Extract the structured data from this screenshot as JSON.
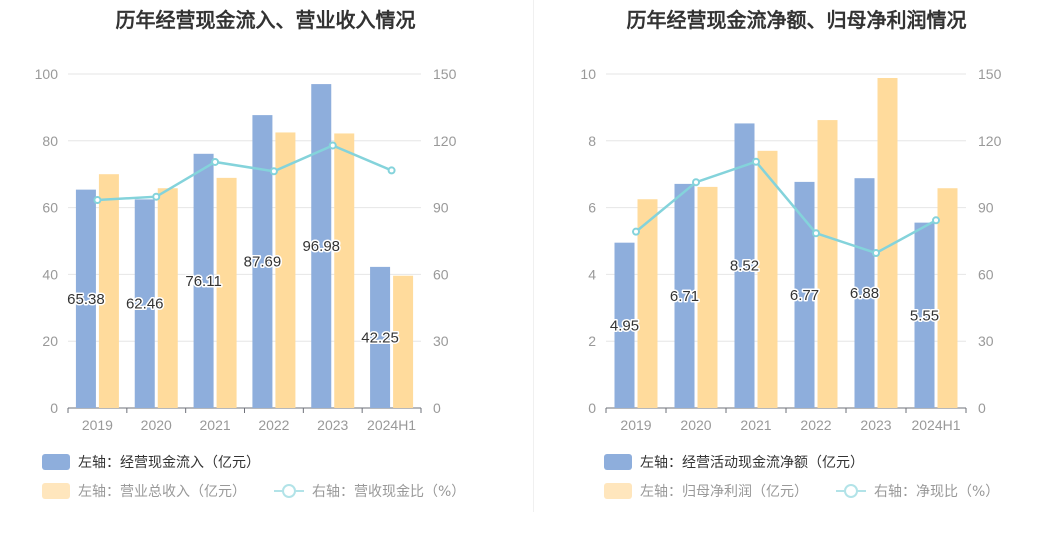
{
  "colors": {
    "bar_primary": "#8eaedc",
    "bar_secondary": "#ffdb9c",
    "line": "#84d3db",
    "legend_text_primary": "#333333",
    "legend_text_muted": "#999999"
  },
  "chart_data": [
    {
      "type": "bar",
      "title": "历年经营现金流入、营业收入情况",
      "categories": [
        "2019",
        "2020",
        "2021",
        "2022",
        "2023",
        "2024H1"
      ],
      "left_axis": {
        "ticks": [
          0,
          20,
          40,
          60,
          80,
          100
        ],
        "range": [
          0,
          100
        ]
      },
      "right_axis": {
        "ticks": [
          0,
          30,
          60,
          90,
          120,
          150
        ],
        "range": [
          0,
          150
        ]
      },
      "grid": true,
      "legend_position": "bottom-left",
      "series": [
        {
          "name": "左轴：经营现金流入（亿元）",
          "axis": "left",
          "kind": "bar",
          "color_key": "bar_primary",
          "values": [
            65.38,
            62.46,
            76.11,
            87.69,
            96.98,
            42.25
          ],
          "show_labels": true,
          "label_text": [
            "65.38",
            "62.46",
            "76.11",
            "87.69",
            "96.98",
            "42.25"
          ]
        },
        {
          "name": "左轴：营业总收入（亿元）",
          "axis": "left",
          "kind": "bar",
          "color_key": "bar_secondary",
          "values": [
            70.0,
            65.8,
            68.9,
            82.5,
            82.2,
            39.6
          ],
          "show_labels": false
        },
        {
          "name": "右轴：营收现金比（%）",
          "axis": "right",
          "kind": "line",
          "color_key": "line",
          "values": [
            93.4,
            94.9,
            110.5,
            106.3,
            117.9,
            106.7
          ],
          "show_labels": false
        }
      ]
    },
    {
      "type": "bar",
      "title": "历年经营现金流净额、归母净利润情况",
      "categories": [
        "2019",
        "2020",
        "2021",
        "2022",
        "2023",
        "2024H1"
      ],
      "left_axis": {
        "ticks": [
          0,
          2,
          4,
          6,
          8,
          10
        ],
        "range": [
          0,
          10
        ]
      },
      "right_axis": {
        "ticks": [
          0,
          30,
          60,
          90,
          120,
          150
        ],
        "range": [
          0,
          150
        ]
      },
      "grid": true,
      "legend_position": "bottom-left",
      "series": [
        {
          "name": "左轴：经营活动现金流净额（亿元）",
          "axis": "left",
          "kind": "bar",
          "color_key": "bar_primary",
          "values": [
            4.95,
            6.71,
            8.52,
            6.77,
            6.88,
            5.55
          ],
          "show_labels": true,
          "label_text": [
            "4.95",
            "6.71",
            "8.52",
            "6.77",
            "6.88",
            "5.55"
          ]
        },
        {
          "name": "左轴：归母净利润（亿元）",
          "axis": "left",
          "kind": "bar",
          "color_key": "bar_secondary",
          "values": [
            6.25,
            6.62,
            7.7,
            8.62,
            9.88,
            6.58
          ],
          "show_labels": false
        },
        {
          "name": "右轴：净现比（%）",
          "axis": "right",
          "kind": "line",
          "color_key": "line",
          "values": [
            79.2,
            101.4,
            110.6,
            78.5,
            69.6,
            84.3
          ],
          "show_labels": false
        }
      ]
    }
  ]
}
